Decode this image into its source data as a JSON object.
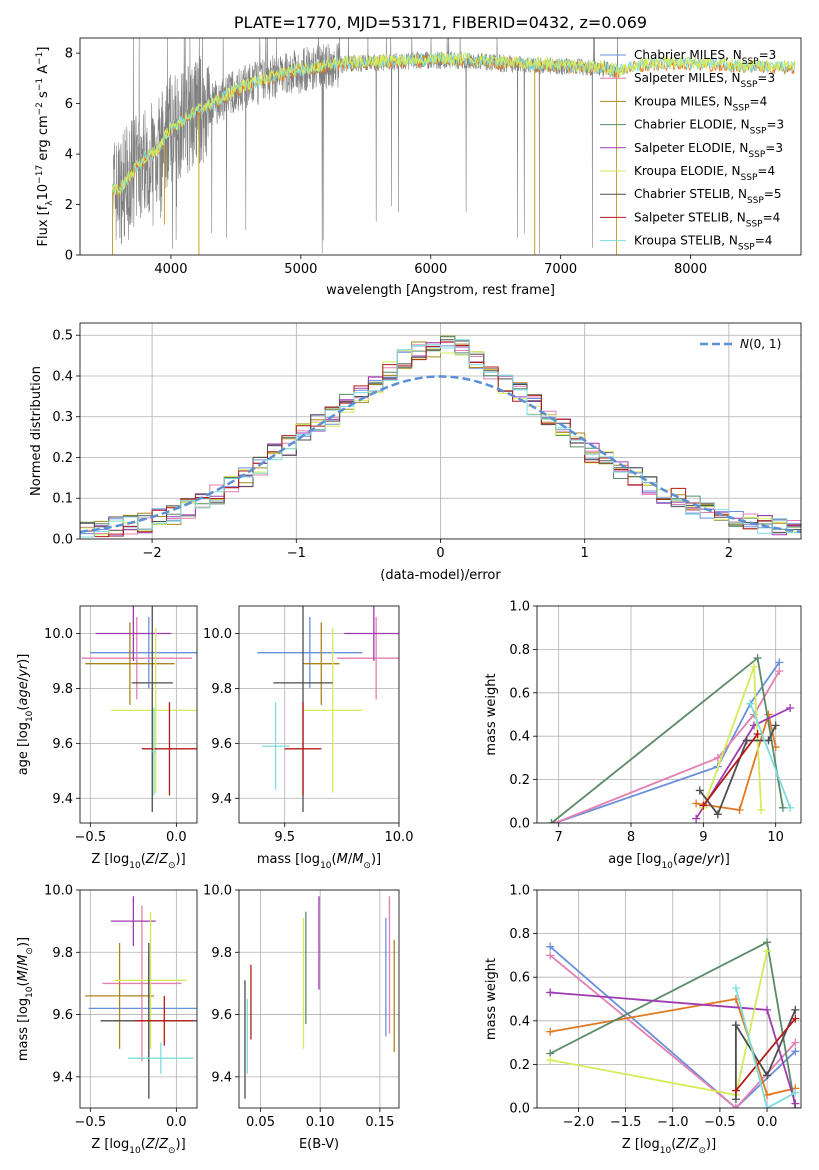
{
  "title": "PLATE=1770, MJD=53171, FIBERID=0432, z=0.069",
  "colors": {
    "Chabrier MILES": "#6a8fdc",
    "Salpeter MILES": "#e37fb1",
    "Kroupa MILES": "#a9861b",
    "Chabrier ELODIE": "#5a8a67",
    "Salpeter ELODIE": "#9e3bb3",
    "Kroupa ELODIE": "#d5eb5b",
    "Chabrier STELIB": "#4d4d4d",
    "Salpeter STELIB": "#b31b1b",
    "Kroupa STELIB": "#7fdcdc",
    "data": "#808080",
    "normal": "#5b8fd6",
    "orange": "#e07a22",
    "lime": "#c6ee56"
  },
  "chart_data": [
    {
      "id": "spectrum",
      "type": "line",
      "title": "PLATE=1770, MJD=53171, FIBERID=0432, z=0.069",
      "xlabel": "wavelength [Angstrom, rest frame]",
      "ylabel": "Flux [f_λ 10^-17 erg cm^-2 s^-1 A^-1]",
      "xlim": [
        3300,
        8850
      ],
      "ylim": [
        0,
        8.6
      ],
      "xticks": [
        4000,
        5000,
        6000,
        7000,
        8000
      ],
      "yticks": [
        0,
        2,
        4,
        6,
        8
      ],
      "grid": false,
      "legend_position": "right",
      "legend": [
        "Chabrier MILES, N_SSP=3",
        "Salpeter MILES, N_SSP=3",
        "Kroupa MILES, N_SSP=4",
        "Chabrier ELODIE, N_SSP=3",
        "Salpeter ELODIE, N_SSP=3",
        "Kroupa ELODIE, N_SSP=4",
        "Chabrier STELIB, N_SSP=5",
        "Salpeter STELIB, N_SSP=4",
        "Kroupa STELIB, N_SSP=4"
      ],
      "continuum": {
        "x": [
          3550,
          3600,
          3700,
          3800,
          3900,
          4000,
          4100,
          4200,
          4300,
          4500,
          4700,
          4900,
          5100,
          5300,
          5500,
          5700,
          5900,
          6100,
          6300,
          6500,
          6700,
          6900,
          7100,
          7300,
          7450,
          7600,
          7800,
          8000,
          8200,
          8400,
          8800
        ],
        "y": [
          2.6,
          2.5,
          3.2,
          3.8,
          4.1,
          5.0,
          5.3,
          5.7,
          5.9,
          6.5,
          6.9,
          7.2,
          7.4,
          7.55,
          7.6,
          7.65,
          7.7,
          7.72,
          7.7,
          7.6,
          7.55,
          7.5,
          7.45,
          7.4,
          7.25,
          7.5,
          7.55,
          7.55,
          7.5,
          7.45,
          7.4
        ]
      },
      "data_range": [
        3550,
        7450
      ],
      "model_range": [
        3550,
        8800
      ]
    },
    {
      "id": "residuals",
      "type": "bar",
      "xlabel": "(data-model)/error",
      "ylabel": "Normed distribution",
      "xlim": [
        -2.5,
        2.5
      ],
      "ylim": [
        0,
        0.53
      ],
      "xticks": [
        -2,
        -1,
        0,
        1,
        2
      ],
      "yticks": [
        0.0,
        0.1,
        0.2,
        0.3,
        0.4,
        0.5
      ],
      "grid": true,
      "legend_position": "top-right",
      "legend": [
        "N(0,1)"
      ],
      "bin_edges": [
        -2.5,
        -2.4,
        -2.3,
        -2.2,
        -2.1,
        -2.0,
        -1.9,
        -1.8,
        -1.7,
        -1.6,
        -1.5,
        -1.4,
        -1.3,
        -1.2,
        -1.1,
        -1.0,
        -0.9,
        -0.8,
        -0.7,
        -0.6,
        -0.5,
        -0.4,
        -0.3,
        -0.2,
        -0.1,
        0.0,
        0.1,
        0.2,
        0.3,
        0.4,
        0.5,
        0.6,
        0.7,
        0.8,
        0.9,
        1.0,
        1.1,
        1.2,
        1.3,
        1.4,
        1.5,
        1.6,
        1.7,
        1.8,
        1.9,
        2.0,
        2.1,
        2.2,
        2.3,
        2.4,
        2.5
      ],
      "mean_density": [
        0.02,
        0.025,
        0.03,
        0.035,
        0.04,
        0.05,
        0.06,
        0.075,
        0.09,
        0.11,
        0.13,
        0.15,
        0.18,
        0.21,
        0.23,
        0.26,
        0.28,
        0.3,
        0.33,
        0.36,
        0.38,
        0.41,
        0.44,
        0.46,
        0.47,
        0.48,
        0.47,
        0.44,
        0.41,
        0.38,
        0.36,
        0.33,
        0.3,
        0.27,
        0.24,
        0.21,
        0.19,
        0.17,
        0.15,
        0.13,
        0.11,
        0.1,
        0.085,
        0.07,
        0.06,
        0.05,
        0.04,
        0.035,
        0.03,
        0.025
      ],
      "normal_curve": {
        "mean": 0,
        "sigma": 1
      }
    },
    {
      "id": "age_vs_Z",
      "type": "scatter",
      "xlabel": "Z [log10(Z/Z⊙)]",
      "ylabel": "age  [log10(age/yr)]",
      "xlim": [
        -0.56,
        0.12
      ],
      "ylim": [
        9.31,
        10.1
      ],
      "xticks": [
        -0.5,
        0.0
      ],
      "yticks": [
        9.4,
        9.6,
        9.8,
        10.0
      ],
      "grid": true,
      "points": [
        {
          "model": "Chabrier MILES",
          "x": -0.16,
          "y": 9.93,
          "xerr": 0.34,
          "yerr": 0.13
        },
        {
          "model": "Salpeter MILES",
          "x": -0.23,
          "y": 9.91,
          "xerr": 0.32,
          "yerr": 0.15
        },
        {
          "model": "Kroupa MILES",
          "x": -0.27,
          "y": 9.89,
          "xerr": 0.26,
          "yerr": 0.15
        },
        {
          "model": "Salpeter ELODIE",
          "x": -0.25,
          "y": 10.0,
          "xerr": 0.22,
          "yerr": 0.1
        },
        {
          "model": "Kroupa ELODIE",
          "x": -0.12,
          "y": 9.72,
          "xerr": 0.26,
          "yerr": 0.3
        },
        {
          "model": "Chabrier STELIB",
          "x": -0.14,
          "y": 9.82,
          "xerr": 0.12,
          "yerr": 0.47
        },
        {
          "model": "Salpeter STELIB",
          "x": -0.04,
          "y": 9.58,
          "xerr": 0.16,
          "yerr": 0.17
        },
        {
          "model": "Kroupa STELIB",
          "x": -0.13,
          "y": 9.57,
          "xerr": 0.01,
          "yerr": 0.16
        }
      ]
    },
    {
      "id": "age_vs_mass",
      "type": "scatter",
      "xlabel": "mass [log10(M/M⊙)]",
      "ylabel": "",
      "xlim": [
        9.3,
        10.0
      ],
      "ylim": [
        9.31,
        10.1
      ],
      "xticks": [
        9.5,
        10.0
      ],
      "yticks": [
        9.4,
        9.6,
        9.8,
        10.0
      ],
      "grid": true,
      "points": [
        {
          "model": "Chabrier MILES",
          "x": 9.61,
          "y": 9.93,
          "xerr": 0.23,
          "yerr": 0.13
        },
        {
          "model": "Salpeter MILES",
          "x": 9.9,
          "y": 9.91,
          "xerr": 0.17,
          "yerr": 0.15
        },
        {
          "model": "Kroupa MILES",
          "x": 9.66,
          "y": 9.89,
          "xerr": 0.08,
          "yerr": 0.15
        },
        {
          "model": "Salpeter ELODIE",
          "x": 9.89,
          "y": 10.0,
          "xerr": 0.13,
          "yerr": 0.1
        },
        {
          "model": "Kroupa ELODIE",
          "x": 9.71,
          "y": 9.72,
          "xerr": 0.13,
          "yerr": 0.3
        },
        {
          "model": "Chabrier STELIB",
          "x": 9.58,
          "y": 9.82,
          "xerr": 0.13,
          "yerr": 0.47
        },
        {
          "model": "Salpeter STELIB",
          "x": 9.58,
          "y": 9.58,
          "xerr": 0.08,
          "yerr": 0.17
        },
        {
          "model": "Kroupa STELIB",
          "x": 9.46,
          "y": 9.59,
          "xerr": 0.06,
          "yerr": 0.16
        }
      ]
    },
    {
      "id": "weight_vs_age",
      "type": "line",
      "xlabel": "age  [log10(age/yr)]",
      "ylabel": "mass weight",
      "xlim": [
        6.7,
        10.35
      ],
      "ylim": [
        0,
        1.0
      ],
      "xticks": [
        7,
        8,
        9,
        10
      ],
      "yticks": [
        0.0,
        0.2,
        0.4,
        0.6,
        0.8,
        1.0
      ],
      "grid": true,
      "series": [
        {
          "model": "Chabrier MILES",
          "x": [
            6.95,
            9.2,
            9.65,
            10.05
          ],
          "y": [
            0.0,
            0.26,
            0.55,
            0.74
          ]
        },
        {
          "model": "Salpeter MILES",
          "x": [
            6.95,
            9.2,
            9.7,
            10.05
          ],
          "y": [
            0.0,
            0.3,
            0.5,
            0.7
          ]
        },
        {
          "model": "Kroupa MILES",
          "x": [
            8.9,
            9.5,
            9.9,
            10.0
          ],
          "y": [
            0.09,
            0.06,
            0.5,
            0.35
          ]
        },
        {
          "model": "Chabrier ELODIE",
          "x": [
            6.9,
            9.75,
            10.1
          ],
          "y": [
            0.0,
            0.76,
            0.07
          ]
        },
        {
          "model": "Salpeter ELODIE",
          "x": [
            8.9,
            9.7,
            10.2
          ],
          "y": [
            0.02,
            0.45,
            0.53
          ]
        },
        {
          "model": "Kroupa ELODIE",
          "x": [
            9.0,
            9.7,
            9.8
          ],
          "y": [
            0.07,
            0.72,
            0.06
          ]
        },
        {
          "model": "Chabrier STELIB",
          "x": [
            8.95,
            9.2,
            9.6,
            9.9,
            10.0
          ],
          "y": [
            0.15,
            0.04,
            0.38,
            0.38,
            0.45
          ]
        },
        {
          "model": "Salpeter STELIB",
          "x": [
            9.0,
            9.75
          ],
          "y": [
            0.08,
            0.41
          ]
        },
        {
          "model": "Kroupa STELIB",
          "x": [
            9.65,
            10.2
          ],
          "y": [
            0.55,
            0.07
          ]
        }
      ]
    },
    {
      "id": "mass_vs_Z",
      "type": "scatter",
      "xlabel": "Z [log10(Z/Z⊙)]",
      "ylabel": "mass [log10(M/M⊙)]",
      "xlim": [
        -0.56,
        0.12
      ],
      "ylim": [
        9.3,
        10.0
      ],
      "xticks": [
        -0.5,
        0.0
      ],
      "yticks": [
        9.4,
        9.6,
        9.8,
        10.0
      ],
      "grid": true,
      "points": [
        {
          "model": "Chabrier MILES",
          "x": -0.16,
          "y": 9.62,
          "xerr": 0.35,
          "yerr": 0.17
        },
        {
          "model": "Salpeter MILES",
          "x": -0.2,
          "y": 9.7,
          "xerr": 0.23,
          "yerr": 0.25
        },
        {
          "model": "Kroupa MILES",
          "x": -0.33,
          "y": 9.66,
          "xerr": 0.2,
          "yerr": 0.17
        },
        {
          "model": "Salpeter ELODIE",
          "x": -0.25,
          "y": 9.9,
          "xerr": 0.13,
          "yerr": 0.08
        },
        {
          "model": "Kroupa ELODIE",
          "x": -0.15,
          "y": 9.71,
          "xerr": 0.21,
          "yerr": 0.22
        },
        {
          "model": "Chabrier STELIB",
          "x": -0.16,
          "y": 9.58,
          "xerr": 0.28,
          "yerr": 0.25
        },
        {
          "model": "Salpeter STELIB",
          "x": -0.07,
          "y": 9.58,
          "xerr": 0.17,
          "yerr": 0.08
        },
        {
          "model": "Kroupa STELIB",
          "x": -0.09,
          "y": 9.46,
          "xerr": 0.19,
          "yerr": 0.05
        }
      ]
    },
    {
      "id": "mass_vs_ebv",
      "type": "scatter",
      "xlabel": "E(B-V)",
      "ylabel": "",
      "xlim": [
        0.032,
        0.166
      ],
      "ylim": [
        9.3,
        10.0
      ],
      "xticks": [
        0.05,
        0.1,
        0.15
      ],
      "yticks": [
        9.4,
        9.6,
        9.8,
        10.0
      ],
      "grid": true,
      "points": [
        {
          "model": "Chabrier MILES",
          "x": 0.155,
          "y": 9.72,
          "yerr": 0.19
        },
        {
          "model": "Salpeter MILES",
          "x": 0.158,
          "y": 9.76,
          "yerr": 0.22
        },
        {
          "model": "Kroupa MILES",
          "x": 0.162,
          "y": 9.66,
          "yerr": 0.18
        },
        {
          "model": "Chabrier ELODIE",
          "x": 0.088,
          "y": 9.75,
          "yerr": 0.18
        },
        {
          "model": "Salpeter ELODIE",
          "x": 0.099,
          "y": 9.83,
          "yerr": 0.15
        },
        {
          "model": "Kroupa ELODIE",
          "x": 0.086,
          "y": 9.7,
          "yerr": 0.21
        },
        {
          "model": "Chabrier STELIB",
          "x": 0.037,
          "y": 9.52,
          "yerr": 0.19
        },
        {
          "model": "Salpeter STELIB",
          "x": 0.042,
          "y": 9.64,
          "yerr": 0.12
        },
        {
          "model": "Kroupa STELIB",
          "x": 0.039,
          "y": 9.53,
          "yerr": 0.12
        }
      ]
    },
    {
      "id": "weight_vs_Z",
      "type": "line",
      "xlabel": "Z [log10(Z/Z⊙)]",
      "ylabel": "mass weight",
      "xlim": [
        -2.44,
        0.36
      ],
      "ylim": [
        0,
        1.0
      ],
      "xticks": [
        -2.0,
        -1.5,
        -1.0,
        -0.5,
        0.0
      ],
      "yticks": [
        0.0,
        0.2,
        0.4,
        0.6,
        0.8,
        1.0
      ],
      "grid": true,
      "series": [
        {
          "model": "Chabrier MILES",
          "x": [
            -2.3,
            -0.33,
            0.3
          ],
          "y": [
            0.74,
            0.0,
            0.26
          ]
        },
        {
          "model": "Salpeter MILES",
          "x": [
            -2.3,
            -0.33,
            0.3
          ],
          "y": [
            0.7,
            0.0,
            0.3
          ]
        },
        {
          "model": "Kroupa MILES",
          "x": [
            -2.3,
            -0.33,
            0.0,
            0.3
          ],
          "y": [
            0.35,
            0.5,
            0.06,
            0.09
          ]
        },
        {
          "model": "Chabrier ELODIE",
          "x": [
            -2.3,
            0.0,
            0.3
          ],
          "y": [
            0.25,
            0.76,
            0.0
          ]
        },
        {
          "model": "Salpeter ELODIE",
          "x": [
            -2.3,
            0.0,
            0.3
          ],
          "y": [
            0.53,
            0.45,
            0.02
          ]
        },
        {
          "model": "Kroupa ELODIE",
          "x": [
            -2.3,
            -0.33,
            0.0
          ],
          "y": [
            0.22,
            0.06,
            0.72
          ]
        },
        {
          "model": "Chabrier STELIB",
          "x": [
            -0.33,
            -0.33,
            0.0,
            0.3
          ],
          "y": [
            0.04,
            0.38,
            0.15,
            0.45
          ]
        },
        {
          "model": "Salpeter STELIB",
          "x": [
            -0.33,
            0.3
          ],
          "y": [
            0.08,
            0.41
          ]
        },
        {
          "model": "Kroupa STELIB",
          "x": [
            -0.33,
            0.0,
            0.3
          ],
          "y": [
            0.55,
            0.0,
            0.07
          ]
        }
      ]
    }
  ]
}
